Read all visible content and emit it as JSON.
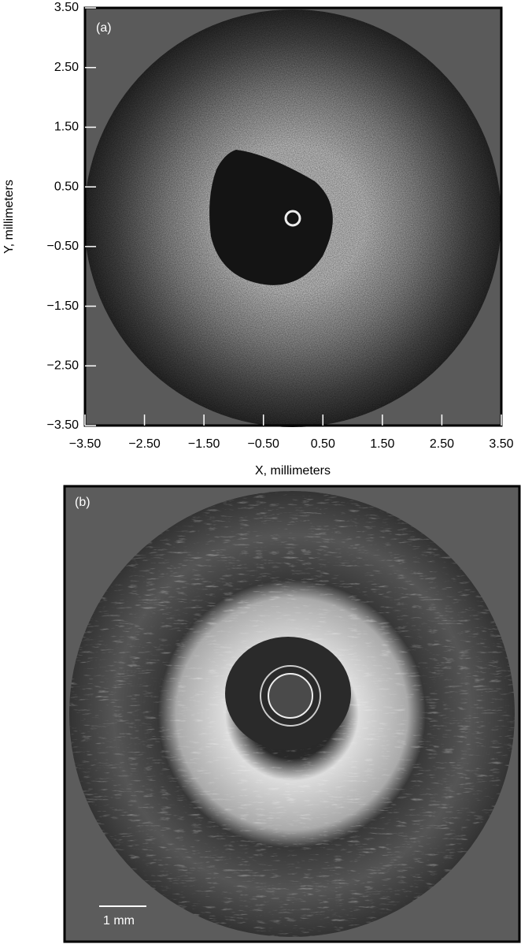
{
  "chart_data": {
    "type": "image",
    "panel_label": "(a)",
    "x_label": "X, millimeters",
    "y_label": "Y, millimeters",
    "xlim": [
      -3.5,
      3.5
    ],
    "ylim": [
      -3.5,
      3.5
    ],
    "xticks": [
      {
        "value": -3.5,
        "label": "−3.50"
      },
      {
        "value": -2.5,
        "label": "−2.50"
      },
      {
        "value": -1.5,
        "label": "−1.50"
      },
      {
        "value": -0.5,
        "label": "−0.50"
      },
      {
        "value": 0.5,
        "label": "0.50"
      },
      {
        "value": 1.5,
        "label": "1.50"
      },
      {
        "value": 2.5,
        "label": "2.50"
      },
      {
        "value": 3.5,
        "label": "3.50"
      }
    ],
    "yticks": [
      {
        "value": -3.5,
        "label": "−3.50"
      },
      {
        "value": -2.5,
        "label": "−2.50"
      },
      {
        "value": -1.5,
        "label": "−1.50"
      },
      {
        "value": -0.5,
        "label": "−0.50"
      },
      {
        "value": 0.5,
        "label": "0.50"
      },
      {
        "value": 1.5,
        "label": "1.50"
      },
      {
        "value": 2.5,
        "label": "2.50"
      },
      {
        "value": 3.5,
        "label": "3.50"
      }
    ]
  },
  "panel_b": {
    "panel_label": "(b)",
    "scale_bar_label": "1 mm"
  }
}
